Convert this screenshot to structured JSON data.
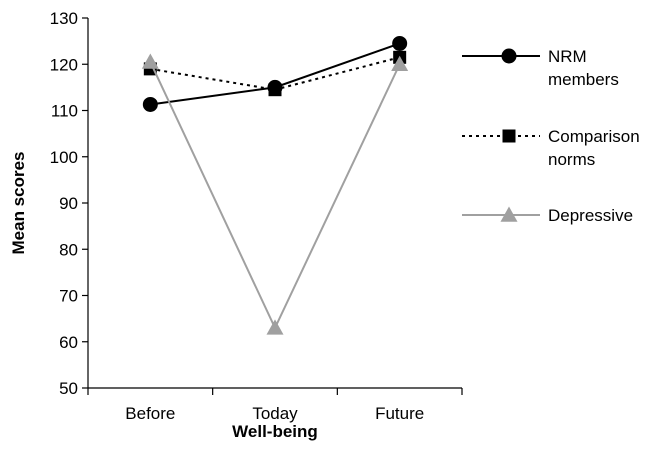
{
  "chart_data": {
    "type": "line",
    "categories": [
      "Before",
      "Today",
      "Future"
    ],
    "series": [
      {
        "name": "NRM members",
        "legend_lines": [
          "NRM",
          "members"
        ],
        "values": [
          111.3,
          115,
          124.5
        ],
        "color": "#000000",
        "dash": "solid",
        "marker": "circle"
      },
      {
        "name": "Comparison norms",
        "legend_lines": [
          "Comparison",
          "norms"
        ],
        "values": [
          119,
          114.5,
          121.5
        ],
        "color": "#000000",
        "dash": "dotted",
        "marker": "square"
      },
      {
        "name": "Depressive",
        "legend_lines": [
          "Depressive"
        ],
        "values": [
          120.5,
          63,
          120
        ],
        "color": "#a0a0a0",
        "dash": "solid",
        "marker": "triangle"
      }
    ],
    "title": "",
    "xlabel": "Well-being",
    "ylabel": "Mean scores",
    "ylim": [
      50,
      130
    ],
    "yticks": [
      50,
      60,
      70,
      80,
      90,
      100,
      110,
      120,
      130
    ],
    "grid": false,
    "legend_position": "right"
  }
}
